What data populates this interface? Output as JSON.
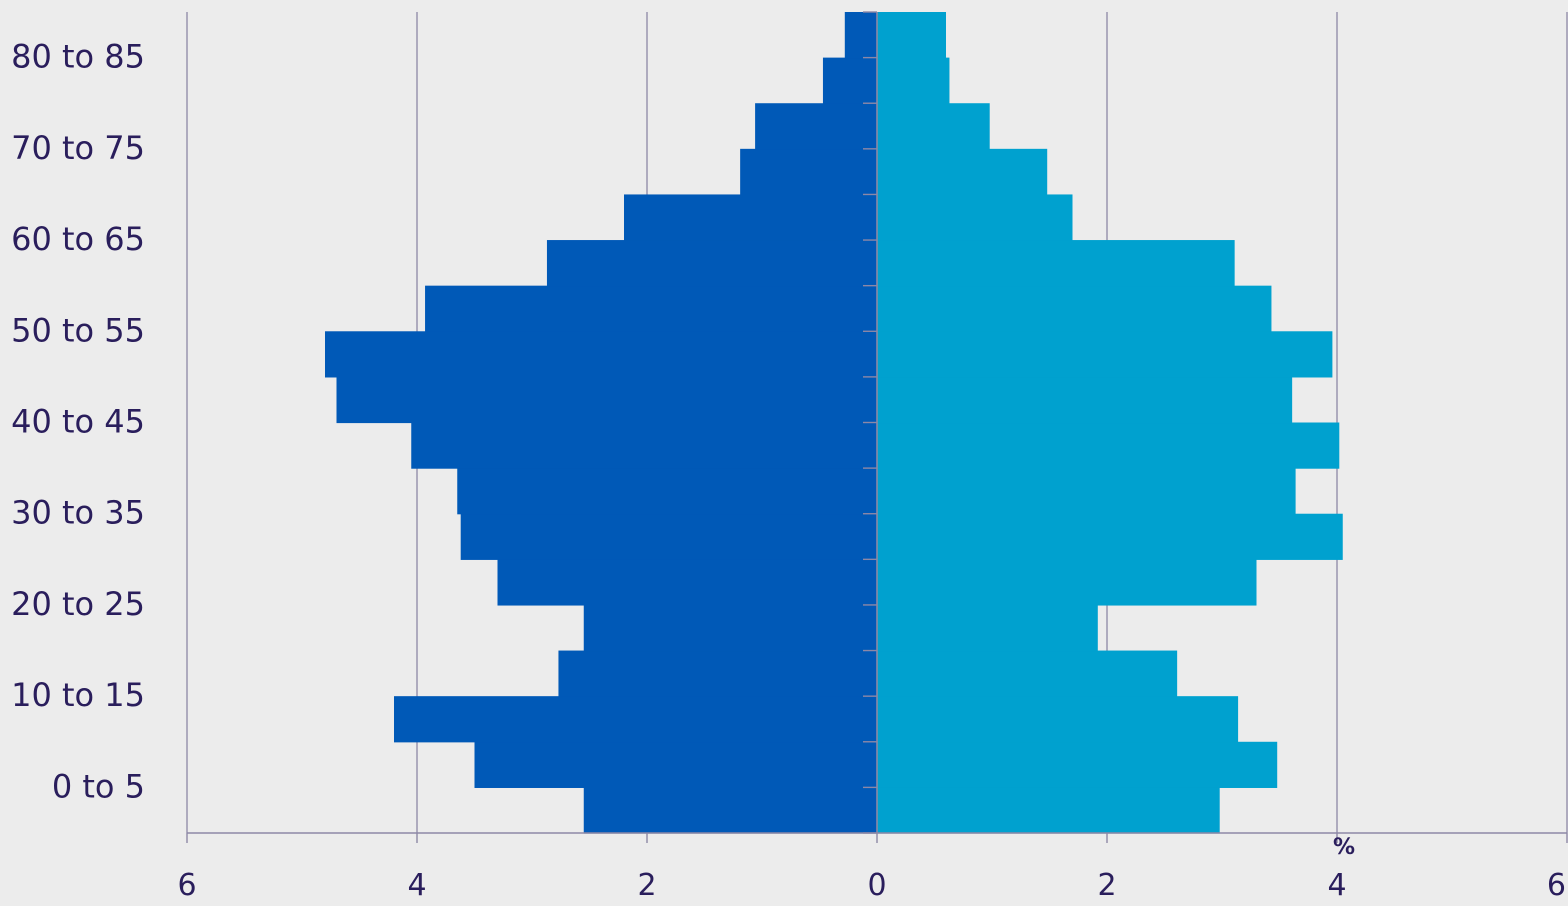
{
  "chart_data": {
    "type": "bar",
    "orientation": "horizontal",
    "layout": "population-pyramid",
    "unit_label": "%",
    "y_tick_labels": [
      "80 to 85",
      "70 to 75",
      "60 to 65",
      "50 to 55",
      "40 to 45",
      "30 to 35",
      "20 to 25",
      "10 to 15",
      "0 to 5"
    ],
    "x_tick_labels": [
      "6",
      "4",
      "2",
      "0",
      "2",
      "4",
      "6"
    ],
    "xlim": [
      -6,
      6
    ],
    "series": [
      {
        "side": "left",
        "color": "#0059b7",
        "values": [
          2.55,
          3.5,
          4.2,
          2.77,
          2.55,
          3.3,
          3.62,
          3.65,
          4.05,
          4.7,
          4.8,
          3.93,
          2.87,
          2.2,
          1.19,
          1.06,
          0.47,
          0.28
        ]
      },
      {
        "side": "right",
        "color": "#00a1cf",
        "values": [
          2.98,
          3.48,
          3.14,
          2.61,
          1.92,
          3.3,
          4.05,
          3.64,
          4.02,
          3.61,
          3.96,
          3.43,
          3.11,
          1.7,
          1.48,
          0.98,
          0.63,
          0.6
        ]
      }
    ],
    "grid": true,
    "legend": "none"
  }
}
